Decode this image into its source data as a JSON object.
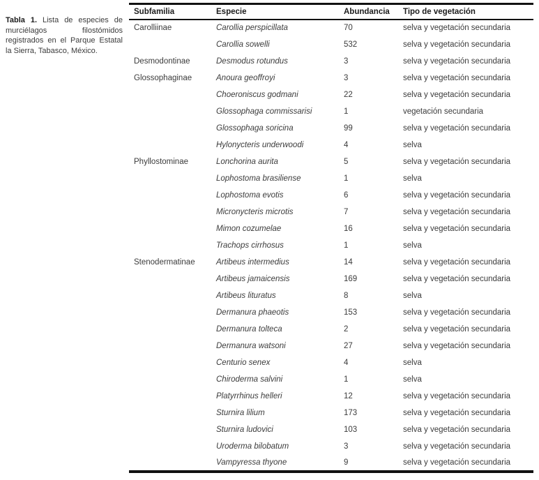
{
  "caption": {
    "label": "Tabla 1.",
    "text": " Lista de especies de murciélagos filostómidos registrados en el Parque Estatal la Sierra, Tabasco, México."
  },
  "table": {
    "columns": [
      "Subfamilia",
      "Especie",
      "Abundancia",
      "Tipo de vegetación"
    ],
    "rows": [
      {
        "subfamilia": "Carolliinae",
        "especie": "Carollia perspicillata",
        "abundancia": "70",
        "vegetacion": "selva y vegetación secundaria"
      },
      {
        "subfamilia": "",
        "especie": "Carollia sowelli",
        "abundancia": "532",
        "vegetacion": "selva y vegetación secundaria"
      },
      {
        "subfamilia": "Desmodontinae",
        "especie": "Desmodus rotundus",
        "abundancia": "3",
        "vegetacion": "selva y vegetación secundaria"
      },
      {
        "subfamilia": "Glossophaginae",
        "especie": "Anoura geoffroyi",
        "abundancia": "3",
        "vegetacion": "selva y vegetación secundaria"
      },
      {
        "subfamilia": "",
        "especie": "Choeroniscus godmani",
        "abundancia": "22",
        "vegetacion": "selva y vegetación secundaria"
      },
      {
        "subfamilia": "",
        "especie": "Glossophaga commissarisi",
        "abundancia": "1",
        "vegetacion": "vegetación secundaria"
      },
      {
        "subfamilia": "",
        "especie": "Glossophaga soricina",
        "abundancia": "99",
        "vegetacion": "selva y vegetación secundaria"
      },
      {
        "subfamilia": "",
        "especie": "Hylonycteris underwoodi",
        "abundancia": "4",
        "vegetacion": "selva"
      },
      {
        "subfamilia": "Phyllostominae",
        "especie": "Lonchorina aurita",
        "abundancia": "5",
        "vegetacion": "selva y vegetación secundaria"
      },
      {
        "subfamilia": "",
        "especie": "Lophostoma brasiliense",
        "abundancia": "1",
        "vegetacion": "selva"
      },
      {
        "subfamilia": "",
        "especie": "Lophostoma evotis",
        "abundancia": "6",
        "vegetacion": "selva y vegetación secundaria"
      },
      {
        "subfamilia": "",
        "especie": "Micronycteris microtis",
        "abundancia": "7",
        "vegetacion": "selva y vegetación secundaria"
      },
      {
        "subfamilia": "",
        "especie": "Mimon cozumelae",
        "abundancia": "16",
        "vegetacion": "selva y vegetación secundaria"
      },
      {
        "subfamilia": "",
        "especie": "Trachops cirrhosus",
        "abundancia": "1",
        "vegetacion": "selva"
      },
      {
        "subfamilia": "Stenodermatinae",
        "especie": "Artibeus intermedius",
        "abundancia": "14",
        "vegetacion": "selva y vegetación secundaria"
      },
      {
        "subfamilia": "",
        "especie": "Artibeus jamaicensis",
        "abundancia": "169",
        "vegetacion": "selva y vegetación secundaria"
      },
      {
        "subfamilia": "",
        "especie": "Artibeus lituratus",
        "abundancia": "8",
        "vegetacion": "selva"
      },
      {
        "subfamilia": "",
        "especie": "Dermanura phaeotis",
        "abundancia": "153",
        "vegetacion": "selva y vegetación secundaria"
      },
      {
        "subfamilia": "",
        "especie": "Dermanura tolteca",
        "abundancia": "2",
        "vegetacion": "selva y vegetación secundaria"
      },
      {
        "subfamilia": "",
        "especie": "Dermanura watsoni",
        "abundancia": "27",
        "vegetacion": "selva y vegetación secundaria"
      },
      {
        "subfamilia": "",
        "especie": "Centurio senex",
        "abundancia": "4",
        "vegetacion": "selva"
      },
      {
        "subfamilia": "",
        "especie": "Chiroderma salvini",
        "abundancia": "1",
        "vegetacion": "selva"
      },
      {
        "subfamilia": "",
        "especie": "Platyrrhinus helleri",
        "abundancia": "12",
        "vegetacion": "selva y vegetación secundaria"
      },
      {
        "subfamilia": "",
        "especie": "Sturnira lilium",
        "abundancia": "173",
        "vegetacion": "selva y vegetación secundaria"
      },
      {
        "subfamilia": "",
        "especie": "Sturnira ludovici",
        "abundancia": "103",
        "vegetacion": "selva y vegetación secundaria"
      },
      {
        "subfamilia": "",
        "especie": "Uroderma bilobatum",
        "abundancia": "3",
        "vegetacion": "selva y vegetación secundaria"
      },
      {
        "subfamilia": "",
        "especie": "Vampyressa thyone",
        "abundancia": "9",
        "vegetacion": "selva y vegetación secundaria"
      }
    ]
  },
  "colors": {
    "text": "#3b3b3b",
    "heading_text": "#1c1c1c",
    "border": "#111111",
    "background": "#ffffff"
  }
}
